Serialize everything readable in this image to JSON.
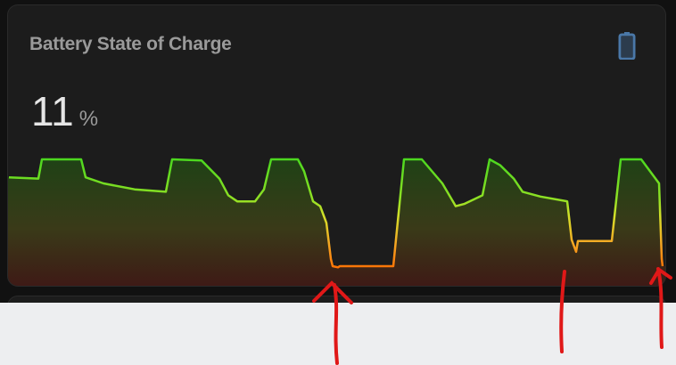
{
  "card": {
    "title": "Battery State of Charge",
    "icon": "battery-icon",
    "state_value": "11",
    "unit": "%"
  },
  "chart_data": {
    "type": "area",
    "title": "",
    "ylabel": "",
    "xlabel": "",
    "ylim": [
      0,
      100
    ],
    "grid": false,
    "values": [
      85,
      84,
      100,
      100,
      85,
      80,
      75,
      73,
      100,
      99,
      84,
      70,
      65,
      65,
      75,
      100,
      100,
      90,
      65,
      61,
      47,
      17,
      11,
      10,
      11,
      11,
      100,
      100,
      80,
      61,
      63,
      70,
      100,
      95,
      84,
      73,
      69,
      65,
      33,
      23,
      32,
      32,
      100,
      100,
      80,
      17,
      11
    ]
  },
  "colors": {
    "high": "#4cd81f",
    "mid": "#d4e02a",
    "low": "#ff6a00",
    "annotation": "#e01818",
    "icon": "#4a78a8"
  },
  "annotations": {
    "arrows": 3
  }
}
